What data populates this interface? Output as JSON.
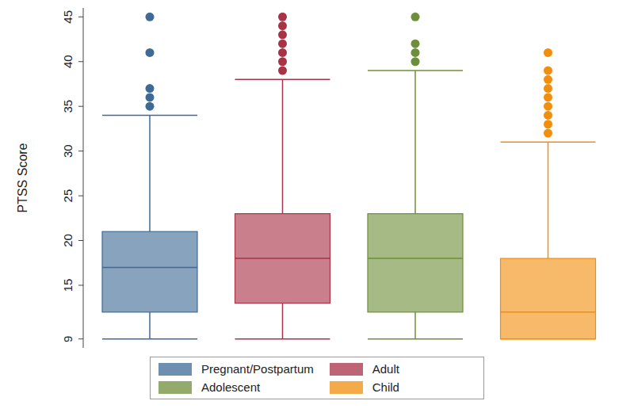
{
  "chart_data": {
    "type": "box",
    "y_label": "PTSS Score",
    "categories": [
      "Pregnant/Postpartum",
      "Adult",
      "Adolescent",
      "Child"
    ],
    "min": [
      9,
      9,
      9,
      9
    ],
    "q1": [
      12,
      13,
      12,
      9
    ],
    "median": [
      17,
      18,
      18,
      12
    ],
    "q3": [
      21,
      23,
      23,
      18
    ],
    "max": [
      34,
      38,
      39,
      31
    ],
    "outliers": [
      [
        35,
        36,
        37,
        41,
        45
      ],
      [
        39,
        40,
        41,
        42,
        43,
        44,
        45
      ],
      [
        40,
        41,
        42,
        45
      ],
      [
        32,
        33,
        34,
        35,
        36,
        37,
        38,
        39,
        41
      ]
    ],
    "colors": [
      "#3f6a96",
      "#a83246",
      "#6e8f3a",
      "#f28e0e"
    ],
    "ylim": [
      8,
      46
    ],
    "yticks": [
      9,
      15,
      20,
      25,
      30,
      35,
      40,
      45
    ],
    "grid": false,
    "legend": "bottom",
    "tick_labels": "y"
  }
}
